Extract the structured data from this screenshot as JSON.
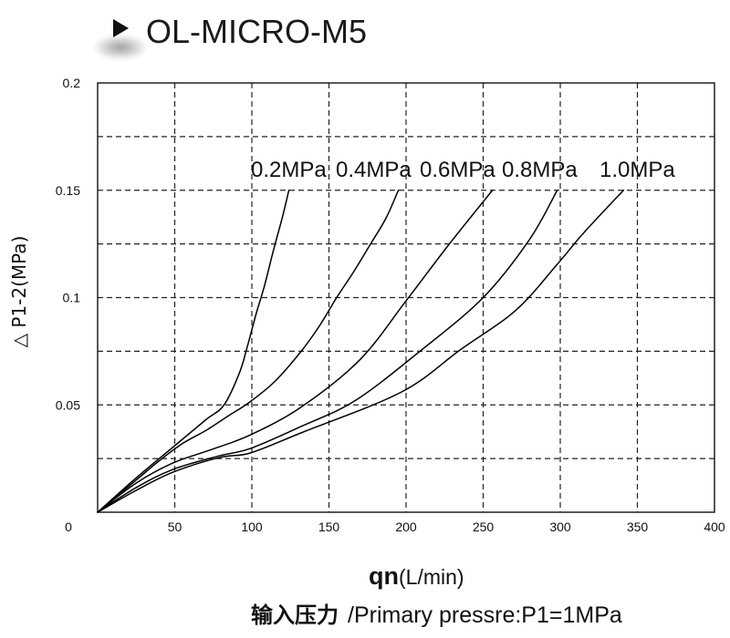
{
  "header": {
    "title_icon": "play-triangle-icon"
  },
  "chart_data": {
    "type": "line",
    "title": "OL-MICRO-M5",
    "xlabel": {
      "symbol": "qn",
      "unit": "(L/min)"
    },
    "ylabel": "△ P1-2(MPa)",
    "xlim": [
      0,
      400
    ],
    "ylim": [
      0,
      0.2
    ],
    "origin_label": "0",
    "x_ticks": [
      50,
      100,
      150,
      200,
      250,
      300,
      350,
      400
    ],
    "y_ticks": [
      0.05,
      0.1,
      0.15,
      0.2
    ],
    "grid": {
      "on": true,
      "style": "dashed",
      "x_step": 50,
      "y_step": 0.025
    },
    "line_color": "#000000",
    "note": {
      "label": "输入压力",
      "text": "/Primary pressre:P1=1MPa"
    },
    "series": [
      {
        "name": "0.2MPa",
        "x": [
          0,
          25,
          50,
          70,
          82,
          92,
          97,
          103,
          108,
          114,
          120,
          124
        ],
        "y": [
          0,
          0.016,
          0.031,
          0.043,
          0.05,
          0.065,
          0.077,
          0.093,
          0.105,
          0.122,
          0.138,
          0.15
        ]
      },
      {
        "name": "0.4MPa",
        "x": [
          0,
          25,
          40,
          55,
          70,
          85,
          98,
          115,
          132,
          144,
          155,
          166,
          177,
          187,
          195
        ],
        "y": [
          0,
          0.015,
          0.024,
          0.032,
          0.038,
          0.045,
          0.051,
          0.061,
          0.075,
          0.087,
          0.1,
          0.112,
          0.125,
          0.137,
          0.15
        ]
      },
      {
        "name": "0.6MPa",
        "x": [
          0,
          25,
          49,
          73,
          99,
          132,
          170,
          200,
          227,
          256
        ],
        "y": [
          0,
          0.0136,
          0.023,
          0.029,
          0.036,
          0.049,
          0.071,
          0.0985,
          0.124,
          0.15
        ]
      },
      {
        "name": "0.8MPa",
        "x": [
          0,
          25,
          49,
          79,
          99,
          132,
          167,
          209,
          250,
          280,
          298
        ],
        "y": [
          0,
          0.0115,
          0.02,
          0.0263,
          0.0297,
          0.04,
          0.052,
          0.075,
          0.1,
          0.127,
          0.15
        ]
      },
      {
        "name": "1.0MPa",
        "x": [
          0,
          25,
          49,
          79,
          99,
          132,
          197,
          235,
          271,
          298,
          315,
          341
        ],
        "y": [
          0,
          0.0102,
          0.0187,
          0.0255,
          0.0276,
          0.037,
          0.056,
          0.0756,
          0.094,
          0.1155,
          0.13,
          0.15
        ]
      }
    ]
  }
}
